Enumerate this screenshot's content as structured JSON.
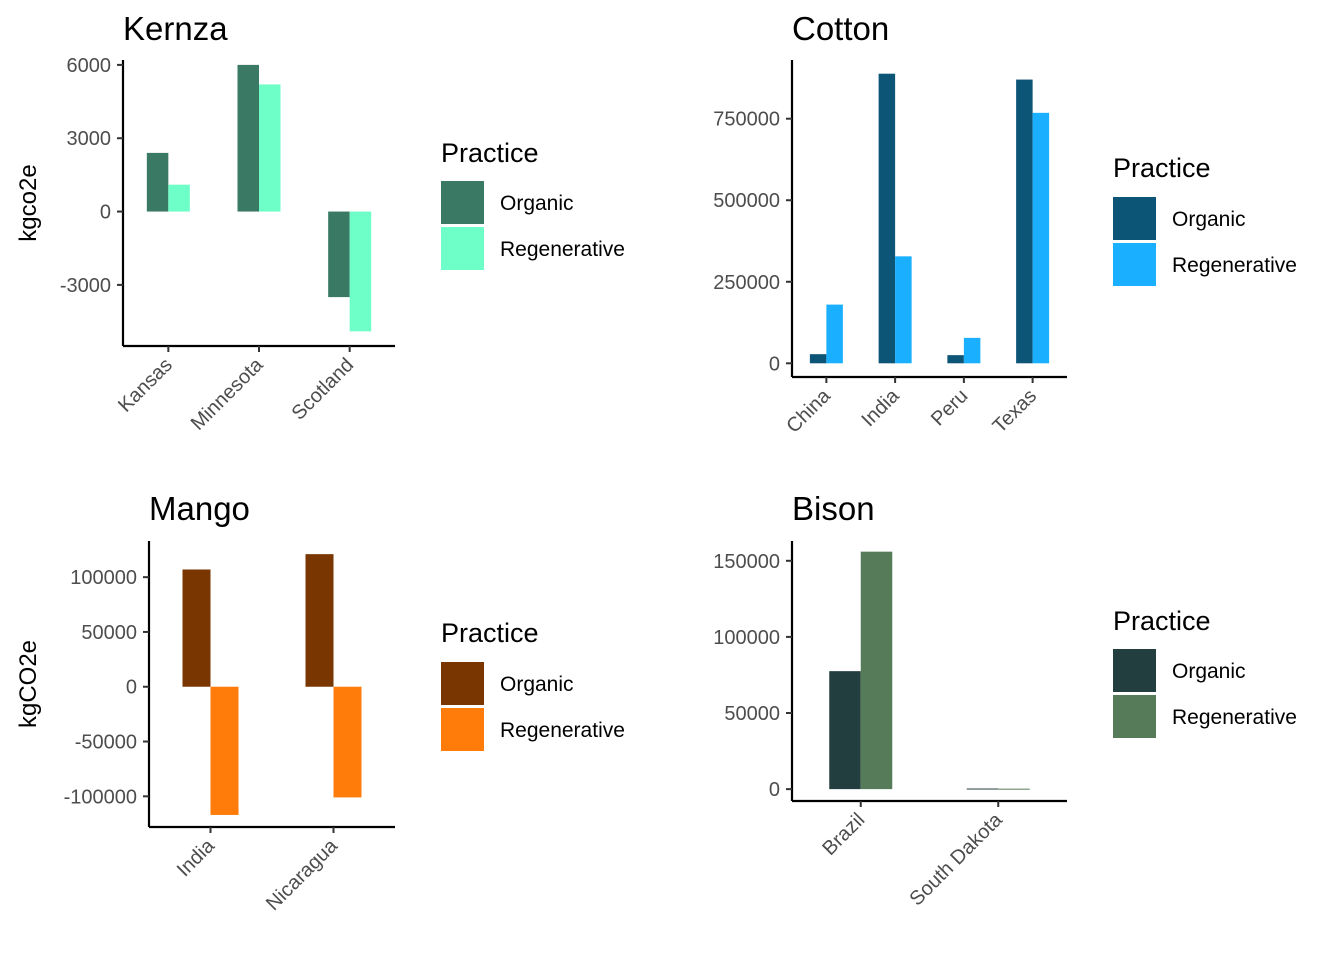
{
  "chart_data": [
    {
      "type": "bar",
      "title": "Kernza",
      "ylabel": "kgco2e",
      "categories": [
        "Kansas",
        "Minnesota",
        "Scotland"
      ],
      "ylim": [
        -5500,
        6200
      ],
      "yticks": [
        -3000,
        0,
        3000,
        6000
      ],
      "yticklabels": [
        "-3000",
        "0",
        "3000",
        "6000"
      ],
      "series": [
        {
          "name": "Organic",
          "color": "#3a7a65",
          "values": [
            2400,
            6000,
            -3500
          ]
        },
        {
          "name": "Regenerative",
          "color": "#6effc8",
          "values": [
            1100,
            5200,
            -4900
          ]
        }
      ],
      "legend_title": "Practice",
      "legend_position": "right",
      "grid": false
    },
    {
      "type": "bar",
      "title": "Cotton",
      "ylabel": "",
      "categories": [
        "China",
        "India",
        "Peru",
        "Texas"
      ],
      "ylim": [
        -42000,
        930000
      ],
      "yticks": [
        0,
        250000,
        500000,
        750000
      ],
      "yticklabels": [
        "0",
        "250000",
        "500000",
        "750000"
      ],
      "series": [
        {
          "name": "Organic",
          "color": "#0d5577",
          "values": [
            28000,
            888000,
            25000,
            870000
          ]
        },
        {
          "name": "Regenerative",
          "color": "#1ab0ff",
          "values": [
            180000,
            328000,
            78000,
            768000
          ]
        }
      ],
      "legend_title": "Practice",
      "legend_position": "right",
      "grid": false
    },
    {
      "type": "bar",
      "title": "Mango",
      "ylabel": "kgCO2e",
      "categories": [
        "India",
        "Nicaragua"
      ],
      "ylim": [
        -128000,
        133000
      ],
      "yticks": [
        -100000,
        -50000,
        0,
        50000,
        100000
      ],
      "yticklabels": [
        "-100000",
        "-50000",
        "0",
        "50000",
        "100000"
      ],
      "series": [
        {
          "name": "Organic",
          "color": "#7a3600",
          "values": [
            107000,
            121000
          ]
        },
        {
          "name": "Regenerative",
          "color": "#ff7b0a",
          "values": [
            -117000,
            -101000
          ]
        }
      ],
      "legend_title": "Practice",
      "legend_position": "right",
      "grid": false
    },
    {
      "type": "bar",
      "title": "Bison",
      "ylabel": "",
      "categories": [
        "Brazil",
        "South Dakota"
      ],
      "ylim": [
        -7800,
        163000
      ],
      "yticks": [
        0,
        50000,
        100000,
        150000
      ],
      "yticklabels": [
        "0",
        "50000",
        "100000",
        "150000"
      ],
      "series": [
        {
          "name": "Organic",
          "color": "#233e3f",
          "values": [
            77500,
            400
          ]
        },
        {
          "name": "Regenerative",
          "color": "#567b58",
          "values": [
            156000,
            300
          ]
        }
      ],
      "legend_title": "Practice",
      "legend_position": "right",
      "grid": false
    }
  ]
}
